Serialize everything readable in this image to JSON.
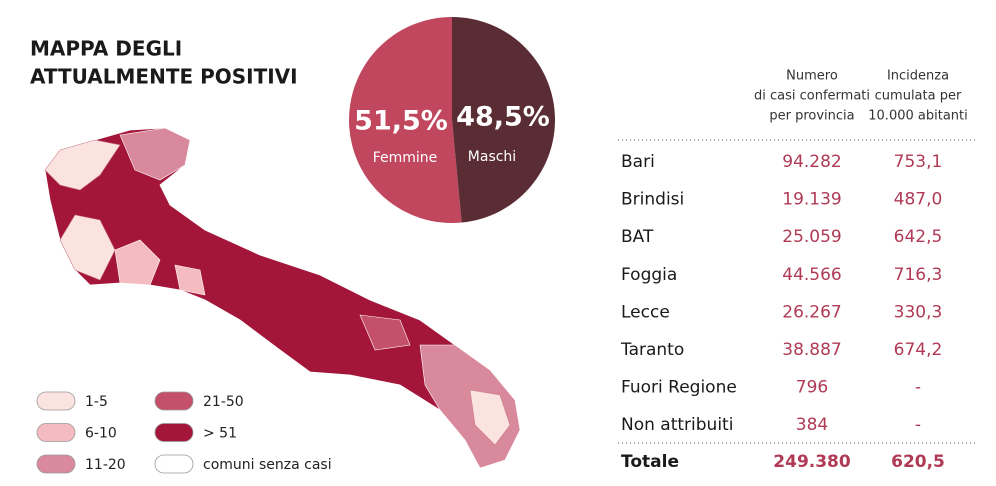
{
  "title": [
    "MAPPA DEGLI",
    "ATTUALMENTE POSITIVI"
  ],
  "chart_data": {
    "type": "pie",
    "categories": [
      "Femmine",
      "Maschi"
    ],
    "values": [
      51.5,
      48.5
    ],
    "value_labels": [
      "51,5%",
      "48,5%"
    ],
    "colors": [
      "#c0475e",
      "#5a2d35"
    ]
  },
  "legend": [
    {
      "label": "1-5",
      "color": "#fbe3e0"
    },
    {
      "label": "6-10",
      "color": "#f4bcc0"
    },
    {
      "label": "11-20",
      "color": "#d88a9c"
    },
    {
      "label": "21-50",
      "color": "#c4506a"
    },
    {
      "label": "> 51",
      "color": "#a3163a"
    },
    {
      "label": "comuni senza casi",
      "color": "#ffffff"
    }
  ],
  "table": {
    "headers": [
      [
        "Numero",
        "di casi confermati",
        "per provincia"
      ],
      [
        "Incidenza",
        "cumulata per",
        "10.000 abitanti"
      ]
    ],
    "rows": [
      [
        "Bari",
        "94.282",
        "753,1"
      ],
      [
        "Brindisi",
        "19.139",
        "487,0"
      ],
      [
        "BAT",
        "25.059",
        "642,5"
      ],
      [
        "Foggia",
        "44.566",
        "716,3"
      ],
      [
        "Lecce",
        "26.267",
        "330,3"
      ],
      [
        "Taranto",
        "38.887",
        "674,2"
      ],
      [
        "Fuori Regione",
        "796",
        "-"
      ],
      [
        "Non attribuiti",
        "384",
        "-"
      ]
    ],
    "total": [
      "Totale",
      "249.380",
      "620,5"
    ]
  }
}
